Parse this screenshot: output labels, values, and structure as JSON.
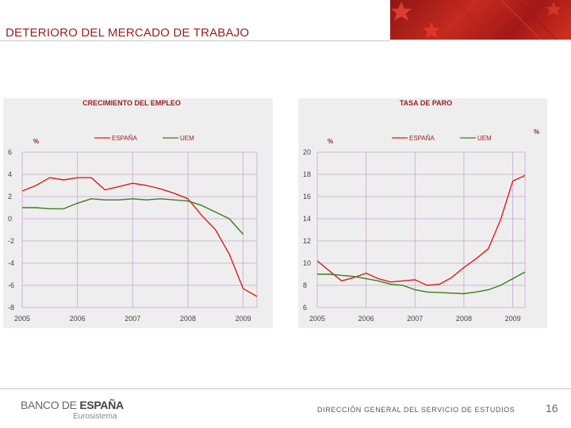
{
  "header": {
    "title": "DETERIORO DEL MERCADO DE TRABAJO"
  },
  "footer": {
    "logo_part1": "BANCO DE ",
    "logo_part2": "ESPAÑA",
    "logo_sub": "Eurosistema",
    "department": "DIRECCIÓN GENERAL DEL SERVICIO DE ESTUDIOS",
    "page_number": "16"
  },
  "colors": {
    "spain": "#e01b1b",
    "uem": "#3a7d1c",
    "title_red": "#9b1b1b",
    "panel_bg": "#eeeeee",
    "grid": "#c9a3d6"
  },
  "chart_data": [
    {
      "type": "line",
      "title": "CRECIMIENTO DEL EMPLEO",
      "unit_left": "%",
      "unit_right": "",
      "x_range": [
        2005,
        2009.25
      ],
      "ylim": [
        -8,
        6
      ],
      "y_ticks": [
        6,
        4,
        2,
        0,
        -2,
        -4,
        -6,
        -8
      ],
      "y_tick_labels": [
        "6",
        "4",
        "2",
        "0",
        "-2",
        "-4",
        "-6",
        "-8"
      ],
      "x_ticks": [
        2005,
        2006,
        2007,
        2008,
        2009
      ],
      "x_tick_labels": [
        "2005",
        "2006",
        "2007",
        "2008",
        "2009"
      ],
      "series": [
        {
          "name": "ESPAÑA",
          "x": [
            2005.0,
            2005.25,
            2005.5,
            2005.75,
            2006.0,
            2006.25,
            2006.5,
            2006.75,
            2007.0,
            2007.25,
            2007.5,
            2007.75,
            2008.0,
            2008.25,
            2008.5,
            2008.75,
            2009.0,
            2009.25
          ],
          "values": [
            2.5,
            3.0,
            3.7,
            3.5,
            3.7,
            3.7,
            2.6,
            2.9,
            3.2,
            3.0,
            2.7,
            2.3,
            1.8,
            0.3,
            -1.0,
            -3.2,
            -6.3,
            -7.0
          ]
        },
        {
          "name": "UEM",
          "x": [
            2005.0,
            2005.25,
            2005.5,
            2005.75,
            2006.0,
            2006.25,
            2006.5,
            2006.75,
            2007.0,
            2007.25,
            2007.5,
            2007.75,
            2008.0,
            2008.25,
            2008.5,
            2008.75,
            2009.0
          ],
          "values": [
            1.0,
            1.0,
            0.9,
            0.9,
            1.4,
            1.8,
            1.7,
            1.7,
            1.8,
            1.7,
            1.8,
            1.7,
            1.6,
            1.2,
            0.6,
            0.0,
            -1.4
          ]
        }
      ]
    },
    {
      "type": "line",
      "title": "TASA DE PARO",
      "unit_left": "%",
      "unit_right": "%",
      "x_range": [
        2005,
        2009.25
      ],
      "ylim": [
        6,
        20
      ],
      "y_ticks": [
        20,
        18,
        16,
        14,
        12,
        10,
        8,
        6
      ],
      "y_tick_labels": [
        "20",
        "18",
        "16",
        "14",
        "12",
        "10",
        "8",
        "6"
      ],
      "x_ticks": [
        2005,
        2006,
        2007,
        2008,
        2009
      ],
      "x_tick_labels": [
        "2005",
        "2006",
        "2007",
        "2008",
        "2009"
      ],
      "series": [
        {
          "name": "ESPAÑA",
          "x": [
            2005.0,
            2005.25,
            2005.5,
            2005.75,
            2006.0,
            2006.25,
            2006.5,
            2006.75,
            2007.0,
            2007.25,
            2007.5,
            2007.75,
            2008.0,
            2008.25,
            2008.5,
            2008.75,
            2009.0,
            2009.25
          ],
          "values": [
            10.2,
            9.3,
            8.4,
            8.7,
            9.1,
            8.6,
            8.3,
            8.4,
            8.5,
            8.0,
            8.1,
            8.7,
            9.6,
            10.4,
            11.3,
            13.9,
            17.4,
            17.9
          ]
        },
        {
          "name": "UEM",
          "x": [
            2005.0,
            2005.25,
            2005.5,
            2005.75,
            2006.0,
            2006.25,
            2006.5,
            2006.75,
            2007.0,
            2007.25,
            2007.5,
            2007.75,
            2008.0,
            2008.25,
            2008.5,
            2008.75,
            2009.0,
            2009.25
          ],
          "values": [
            9.0,
            9.0,
            8.9,
            8.8,
            8.6,
            8.4,
            8.1,
            8.0,
            7.6,
            7.4,
            7.35,
            7.3,
            7.25,
            7.4,
            7.6,
            8.0,
            8.6,
            9.2
          ]
        }
      ]
    }
  ]
}
